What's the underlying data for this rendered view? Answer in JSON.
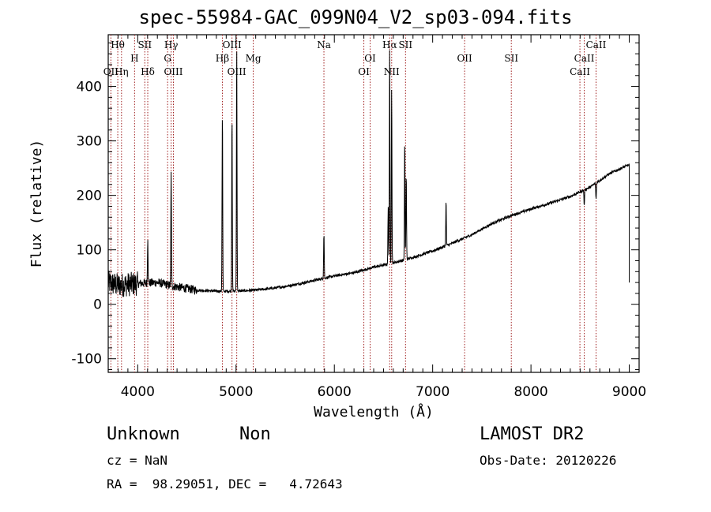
{
  "chart_data": {
    "type": "line",
    "title": "spec-55984-GAC_099N04_V2_sp03-094.fits",
    "xlabel": "Wavelength (Å)",
    "ylabel": "Flux (relative)",
    "xlim": [
      3700,
      9100
    ],
    "ylim": [
      -125,
      495
    ],
    "xticks": [
      4000,
      5000,
      6000,
      7000,
      8000,
      9000
    ],
    "yticks": [
      -100,
      0,
      100,
      200,
      300,
      400
    ],
    "line_markers": [
      {
        "label": "Hθ",
        "x": 3797,
        "row": 0
      },
      {
        "label": "OII",
        "x": 3727,
        "row": 2
      },
      {
        "label": "Hη",
        "x": 3835,
        "row": 2
      },
      {
        "label": "H",
        "x": 3968,
        "row": 1
      },
      {
        "label": "SII",
        "x": 4072,
        "row": 0
      },
      {
        "label": "Hδ",
        "x": 4102,
        "row": 2
      },
      {
        "label": "Hγ",
        "x": 4340,
        "row": 0
      },
      {
        "label": "G",
        "x": 4304,
        "row": 1
      },
      {
        "label": "OIII",
        "x": 4363,
        "row": 2
      },
      {
        "label": "OIII",
        "x": 4959,
        "row": 0
      },
      {
        "label": "Hβ",
        "x": 4861,
        "row": 1
      },
      {
        "label": "OIII",
        "x": 5007,
        "row": 2
      },
      {
        "label": "Mg",
        "x": 5175,
        "row": 1
      },
      {
        "label": "Na",
        "x": 5894,
        "row": 0
      },
      {
        "label": "OI",
        "x": 6364,
        "row": 1
      },
      {
        "label": "OI",
        "x": 6300,
        "row": 2
      },
      {
        "label": "Hα",
        "x": 6563,
        "row": 0
      },
      {
        "label": "SII",
        "x": 6724,
        "row": 0
      },
      {
        "label": "NII",
        "x": 6583,
        "row": 2
      },
      {
        "label": "OII",
        "x": 7325,
        "row": 1
      },
      {
        "label": "SII",
        "x": 7800,
        "row": 1
      },
      {
        "label": "CaII",
        "x": 8662,
        "row": 0
      },
      {
        "label": "CaII",
        "x": 8542,
        "row": 1
      },
      {
        "label": "CaII",
        "x": 8498,
        "row": 2
      }
    ],
    "continuum": [
      [
        3700,
        40
      ],
      [
        3800,
        35
      ],
      [
        4000,
        38
      ],
      [
        4200,
        40
      ],
      [
        4400,
        32
      ],
      [
        4600,
        26
      ],
      [
        4800,
        24
      ],
      [
        5000,
        24
      ],
      [
        5200,
        26
      ],
      [
        5400,
        30
      ],
      [
        5600,
        36
      ],
      [
        5800,
        44
      ],
      [
        6000,
        52
      ],
      [
        6200,
        58
      ],
      [
        6400,
        68
      ],
      [
        6600,
        76
      ],
      [
        6800,
        86
      ],
      [
        7000,
        98
      ],
      [
        7200,
        112
      ],
      [
        7400,
        128
      ],
      [
        7600,
        148
      ],
      [
        7800,
        163
      ],
      [
        8000,
        175
      ],
      [
        8200,
        186
      ],
      [
        8400,
        198
      ],
      [
        8600,
        215
      ],
      [
        8800,
        240
      ],
      [
        8980,
        255
      ]
    ],
    "emission_peaks": [
      {
        "x": 4861,
        "peak": 355
      },
      {
        "x": 4959,
        "peak": 350
      },
      {
        "x": 5007,
        "peak": 470
      },
      {
        "x": 4102,
        "peak": 125
      },
      {
        "x": 4340,
        "peak": 240
      },
      {
        "x": 5894,
        "peak": 130
      },
      {
        "x": 6563,
        "peak": 470
      },
      {
        "x": 6583,
        "peak": 400
      },
      {
        "x": 6548,
        "peak": 180
      },
      {
        "x": 6716,
        "peak": 300
      },
      {
        "x": 6731,
        "peak": 240
      },
      {
        "x": 7136,
        "peak": 190
      }
    ],
    "absorption_dips": [
      {
        "x": 8542,
        "depth": 180
      },
      {
        "x": 8662,
        "depth": 180
      }
    ]
  },
  "info": {
    "object_class": "Unknown",
    "subclass": "Non",
    "survey": "LAMOST DR2",
    "redshift": "cz = NaN",
    "obs_date": "Obs-Date: 20120226",
    "coords": "RA =  98.29051, DEC =   4.72643"
  },
  "colors": {
    "spectrum": "#000000",
    "markers": "#a02020",
    "axes": "#000000"
  }
}
